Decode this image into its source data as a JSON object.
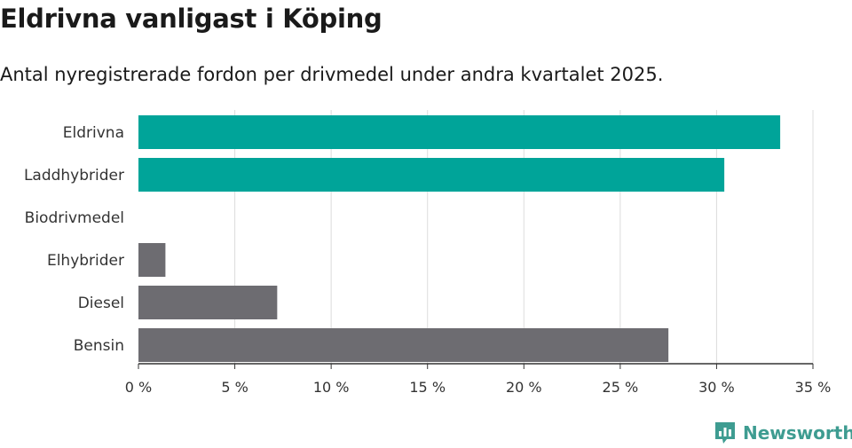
{
  "header": {
    "title": "Eldrivna vanligast i Köping",
    "subtitle": "Antal nyregistrerade fordon per drivmedel under andra kvartalet 2025."
  },
  "brand": {
    "name": "Newsworthy",
    "icon": "newsworthy-logo-icon",
    "color": "#3e9c91"
  },
  "chart_data": {
    "type": "bar",
    "orientation": "horizontal",
    "categories": [
      "Eldrivna",
      "Laddhybrider",
      "Biodrivmedel",
      "Elhybrider",
      "Diesel",
      "Bensin"
    ],
    "values": [
      33.3,
      30.4,
      0,
      1.4,
      7.2,
      27.5
    ],
    "colors": [
      "#00a499",
      "#00a499",
      "#6d6c71",
      "#6d6c71",
      "#6d6c71",
      "#6d6c71"
    ],
    "xlim": [
      0,
      35
    ],
    "xticks": [
      0,
      5,
      10,
      15,
      20,
      25,
      30,
      35
    ],
    "xtick_labels": [
      "0 %",
      "5 %",
      "10 %",
      "15 %",
      "20 %",
      "25 %",
      "30 %",
      "35 %"
    ],
    "grid": "vertical",
    "xlabel": "",
    "ylabel": ""
  }
}
